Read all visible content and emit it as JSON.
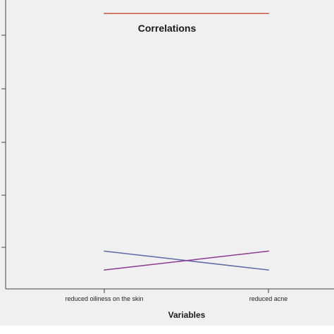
{
  "chart_data": {
    "type": "line",
    "title": "Correlations",
    "xlabel": "Variables",
    "ylabel": "",
    "categories": [
      "reduced oiliness on the skin",
      "reduced acne"
    ],
    "series": [
      {
        "color": "#c8553d",
        "values": [
          1.0,
          1.0
        ]
      },
      {
        "color": "#5b6aa8",
        "values": [
          0.12,
          0.05
        ]
      },
      {
        "color": "#8b3a8f",
        "values": [
          0.05,
          0.12
        ]
      }
    ],
    "ylim": [
      -0.02,
      1.05
    ],
    "grid": false,
    "legend": "none"
  }
}
